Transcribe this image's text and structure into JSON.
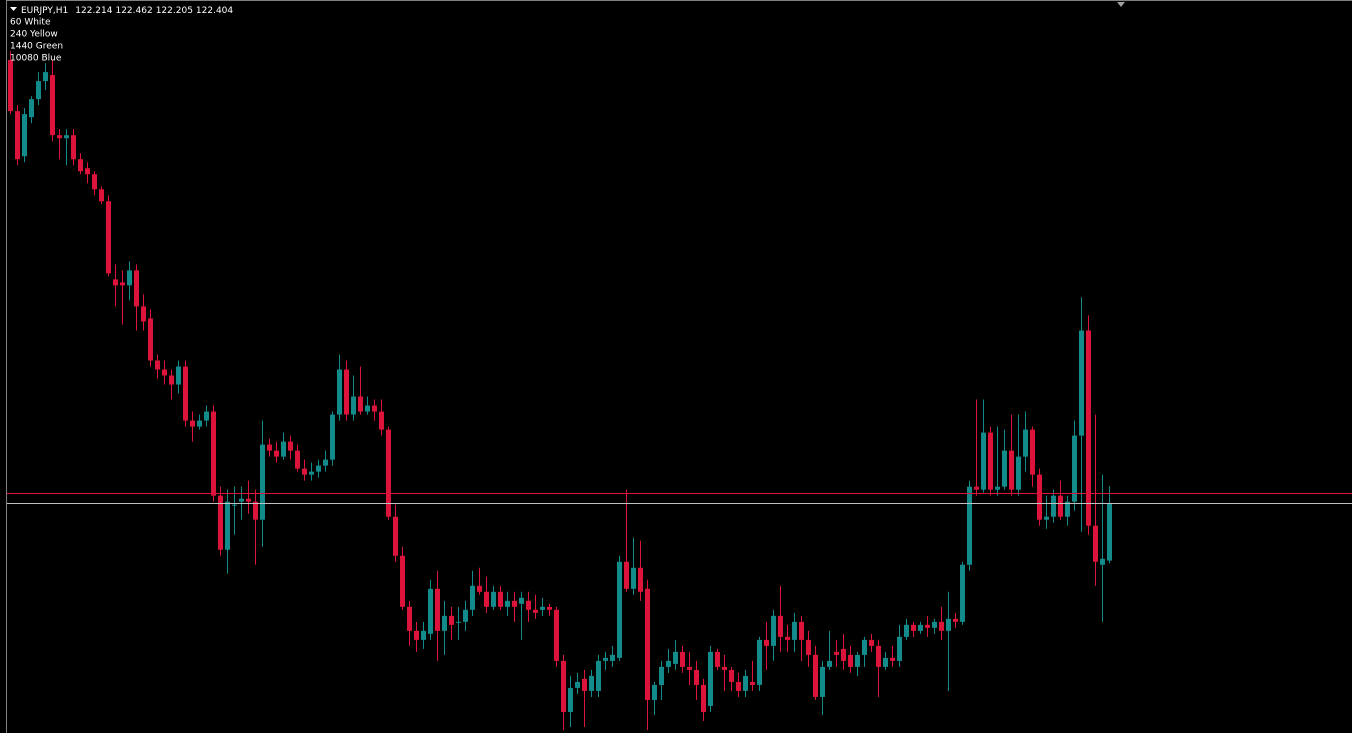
{
  "chart_data": {
    "type": "candlestick",
    "title": "EURJPY,H1",
    "annotations": [
      "60 White",
      "240 Yellow",
      "1440 Green",
      "10080 Blue"
    ],
    "up_color": "#138b8b",
    "down_color": "#dc143c",
    "ylim": [
      121.64,
      124.08
    ],
    "hlines": [
      {
        "value": 122.44,
        "color": "#dc143c"
      },
      {
        "value": 122.404,
        "color": "#c0c0c0"
      }
    ],
    "open": [
      123.88,
      123.71,
      123.56,
      123.69,
      123.75,
      123.81,
      123.83,
      123.63,
      123.62,
      123.63,
      123.55,
      123.52,
      123.5,
      123.45,
      123.41,
      123.15,
      123.14,
      123.13,
      123.18,
      123.06,
      123.02,
      122.88,
      122.85,
      122.83,
      122.8,
      122.86,
      122.68,
      122.66,
      122.68,
      122.71,
      122.43,
      122.25,
      122.4,
      122.41,
      122.42,
      122.41,
      122.35,
      122.6,
      122.58,
      122.56,
      122.61,
      122.58,
      122.52,
      122.5,
      122.51,
      122.53,
      122.55,
      122.7,
      122.85,
      122.7,
      122.76,
      122.71,
      122.73,
      122.71,
      122.65,
      122.36,
      122.23,
      122.06,
      121.98,
      121.95,
      121.97,
      122.12,
      121.98,
      122.03,
      122.01,
      122.01,
      122.05,
      122.13,
      122.11,
      122.06,
      122.11,
      122.06,
      122.08,
      122.07,
      122.08,
      122.05,
      122.05,
      122.06,
      122.05,
      121.88,
      121.71,
      121.79,
      121.82,
      121.78,
      121.78,
      121.88,
      121.88,
      121.89,
      122.21,
      122.12,
      122.19,
      122.12,
      121.75,
      121.8,
      121.86,
      121.87,
      121.91,
      121.86,
      121.85,
      121.8,
      121.73,
      121.91,
      121.86,
      121.85,
      121.81,
      121.78,
      121.81,
      121.8,
      121.95,
      121.93,
      122.03,
      121.96,
      121.95,
      122.01,
      121.95,
      121.9,
      121.76,
      121.86,
      121.91,
      121.92,
      121.9,
      121.86,
      121.9,
      121.95,
      121.93,
      121.86,
      121.89,
      121.88,
      121.96,
      122.0,
      121.98,
      122.0,
      121.99,
      122.01,
      121.98,
      122.02,
      122.01,
      122.2,
      122.46,
      122.45,
      122.64,
      122.45,
      122.46,
      122.58,
      122.45,
      122.56,
      122.65,
      122.5,
      122.35,
      122.36,
      122.43,
      122.36,
      122.41,
      122.63,
      122.98,
      122.33,
      122.2,
      122.214
    ],
    "high": [
      123.91,
      123.73,
      123.72,
      123.76,
      123.84,
      123.87,
      123.88,
      123.65,
      123.65,
      123.65,
      123.57,
      123.54,
      123.51,
      123.46,
      123.43,
      123.2,
      123.18,
      123.21,
      123.2,
      123.1,
      123.05,
      122.9,
      122.88,
      122.85,
      122.88,
      122.88,
      122.71,
      122.7,
      122.73,
      122.73,
      122.46,
      122.45,
      122.46,
      122.46,
      122.48,
      122.45,
      122.68,
      122.62,
      122.61,
      122.64,
      122.63,
      122.6,
      122.55,
      122.54,
      122.55,
      122.58,
      122.71,
      122.9,
      122.88,
      122.83,
      122.86,
      122.76,
      122.75,
      122.75,
      122.66,
      122.4,
      122.26,
      122.08,
      122.01,
      122.01,
      122.15,
      122.18,
      122.08,
      122.06,
      122.06,
      122.08,
      122.18,
      122.19,
      122.16,
      122.13,
      122.13,
      122.11,
      122.11,
      122.11,
      122.11,
      122.1,
      122.09,
      122.07,
      122.06,
      121.9,
      121.83,
      121.84,
      121.85,
      121.85,
      121.9,
      121.91,
      121.93,
      122.23,
      122.45,
      122.29,
      122.28,
      122.15,
      121.81,
      121.88,
      121.92,
      121.95,
      121.93,
      121.91,
      121.88,
      121.82,
      121.93,
      121.92,
      121.9,
      121.86,
      121.84,
      121.85,
      121.88,
      121.96,
      122.01,
      122.05,
      122.13,
      122.0,
      122.04,
      122.03,
      121.98,
      121.93,
      121.88,
      121.98,
      121.95,
      121.97,
      121.93,
      121.91,
      121.96,
      121.97,
      121.95,
      121.91,
      121.93,
      122.0,
      122.02,
      122.01,
      122.01,
      122.03,
      122.02,
      122.06,
      122.11,
      122.04,
      122.21,
      122.48,
      122.75,
      122.75,
      122.66,
      122.66,
      122.65,
      122.7,
      122.7,
      122.71,
      122.66,
      122.52,
      122.43,
      122.45,
      122.48,
      122.43,
      122.68,
      123.09,
      123.03,
      122.7,
      122.5,
      122.462
    ],
    "low": [
      123.7,
      123.53,
      123.54,
      123.67,
      123.73,
      123.78,
      123.61,
      123.55,
      123.53,
      123.53,
      123.5,
      123.47,
      123.43,
      123.4,
      123.16,
      123.06,
      123.0,
      123.08,
      122.98,
      122.98,
      122.86,
      122.82,
      122.8,
      122.75,
      122.77,
      122.66,
      122.61,
      122.65,
      122.66,
      122.41,
      122.23,
      122.17,
      122.3,
      122.35,
      122.37,
      122.2,
      122.26,
      122.56,
      122.54,
      122.55,
      122.55,
      122.51,
      122.48,
      122.48,
      122.49,
      122.51,
      122.53,
      122.68,
      122.68,
      122.68,
      122.7,
      122.7,
      122.68,
      122.63,
      122.35,
      122.21,
      122.05,
      121.93,
      121.91,
      121.92,
      121.95,
      121.88,
      121.9,
      121.95,
      121.95,
      121.98,
      122.03,
      122.1,
      122.04,
      122.05,
      122.05,
      122.03,
      122.01,
      121.95,
      122.01,
      122.02,
      122.03,
      122.03,
      121.86,
      121.65,
      121.66,
      121.77,
      121.66,
      121.76,
      121.76,
      121.85,
      121.86,
      121.88,
      122.11,
      122.1,
      122.08,
      121.65,
      121.7,
      121.75,
      121.84,
      121.85,
      121.84,
      121.8,
      121.75,
      121.68,
      121.71,
      121.85,
      121.78,
      121.78,
      121.76,
      121.76,
      121.78,
      121.78,
      121.85,
      121.88,
      121.91,
      121.91,
      121.91,
      121.88,
      121.86,
      121.75,
      121.7,
      121.85,
      121.86,
      121.85,
      121.84,
      121.83,
      121.86,
      121.91,
      121.76,
      121.85,
      121.86,
      121.86,
      121.95,
      121.96,
      121.97,
      121.96,
      121.97,
      121.95,
      121.78,
      121.99,
      122.0,
      122.18,
      122.43,
      122.44,
      122.43,
      122.43,
      122.45,
      122.43,
      122.43,
      122.51,
      122.46,
      122.33,
      122.32,
      122.34,
      122.35,
      122.33,
      122.38,
      122.31,
      122.3,
      122.13,
      122.01,
      122.205
    ],
    "close": [
      123.71,
      123.55,
      123.7,
      123.75,
      123.81,
      123.84,
      123.63,
      123.62,
      123.63,
      123.55,
      123.51,
      123.5,
      123.45,
      123.41,
      123.17,
      123.13,
      123.13,
      123.18,
      123.06,
      123.01,
      122.88,
      122.85,
      122.83,
      122.8,
      122.86,
      122.68,
      122.66,
      122.68,
      122.71,
      122.43,
      122.25,
      122.41,
      122.4,
      122.42,
      122.41,
      122.35,
      122.6,
      122.58,
      122.56,
      122.61,
      122.58,
      122.52,
      122.5,
      122.51,
      122.53,
      122.55,
      122.7,
      122.85,
      122.7,
      122.76,
      122.71,
      122.73,
      122.71,
      122.65,
      122.36,
      122.23,
      122.06,
      121.98,
      121.95,
      121.98,
      122.12,
      121.98,
      122.03,
      122.0,
      122.01,
      122.05,
      122.13,
      122.11,
      122.06,
      122.11,
      122.06,
      122.08,
      122.06,
      122.09,
      122.05,
      122.04,
      122.06,
      122.05,
      121.88,
      121.71,
      121.79,
      121.81,
      121.78,
      121.83,
      121.88,
      121.89,
      121.9,
      122.21,
      122.12,
      122.19,
      122.11,
      121.75,
      121.8,
      121.86,
      121.88,
      121.91,
      121.86,
      121.85,
      121.8,
      121.71,
      121.91,
      121.86,
      121.85,
      121.81,
      121.78,
      121.83,
      121.8,
      121.95,
      121.93,
      122.03,
      121.96,
      121.95,
      122.01,
      121.95,
      121.9,
      121.76,
      121.86,
      121.88,
      121.9,
      121.88,
      121.86,
      121.9,
      121.95,
      121.93,
      121.86,
      121.89,
      121.88,
      121.96,
      122.0,
      121.98,
      122.0,
      121.99,
      122.01,
      121.98,
      122.02,
      122.01,
      122.2,
      122.46,
      122.45,
      122.64,
      122.45,
      122.46,
      122.58,
      122.45,
      122.56,
      122.65,
      122.5,
      122.35,
      122.36,
      122.43,
      122.36,
      122.41,
      122.63,
      122.98,
      122.33,
      122.21,
      122.22,
      122.404
    ]
  }
}
